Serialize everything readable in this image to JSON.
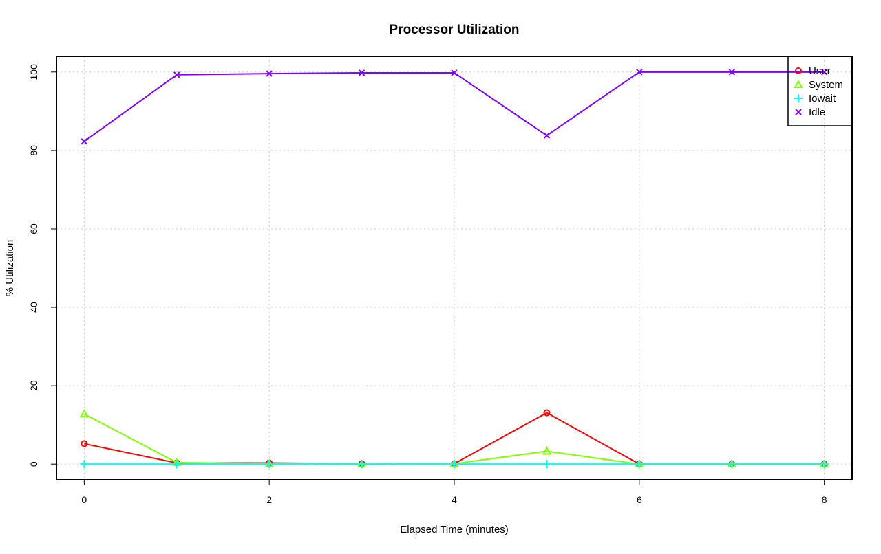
{
  "chart_data": {
    "type": "line",
    "title": "Processor Utilization",
    "xlabel": "Elapsed Time (minutes)",
    "ylabel": "% Utilization",
    "x": [
      0,
      1,
      2,
      3,
      4,
      5,
      6,
      7,
      8
    ],
    "xlim": [
      -0.3,
      8.3
    ],
    "ylim": [
      -4,
      104
    ],
    "xticks": [
      0,
      2,
      4,
      6,
      8
    ],
    "yticks": [
      0,
      20,
      40,
      60,
      80,
      100
    ],
    "grid": true,
    "legend_position": "top-right",
    "series": [
      {
        "name": "User",
        "color": "#ff0000",
        "marker": "circle",
        "values": [
          5.2,
          0.3,
          0.3,
          0.1,
          0.1,
          13.1,
          0.0,
          0.0,
          0.0
        ]
      },
      {
        "name": "System",
        "color": "#80ff00",
        "marker": "triangle",
        "values": [
          12.8,
          0.4,
          0.1,
          0.0,
          0.1,
          3.3,
          0.0,
          0.0,
          0.0
        ]
      },
      {
        "name": "Iowait",
        "color": "#00ffff",
        "marker": "plus",
        "values": [
          0,
          0,
          0,
          0,
          0,
          0,
          0,
          0,
          0
        ]
      },
      {
        "name": "Idle",
        "color": "#8000ff",
        "marker": "cross",
        "values": [
          82.3,
          99.3,
          99.6,
          99.8,
          99.8,
          83.8,
          100.0,
          100.0,
          100.0
        ]
      }
    ]
  }
}
